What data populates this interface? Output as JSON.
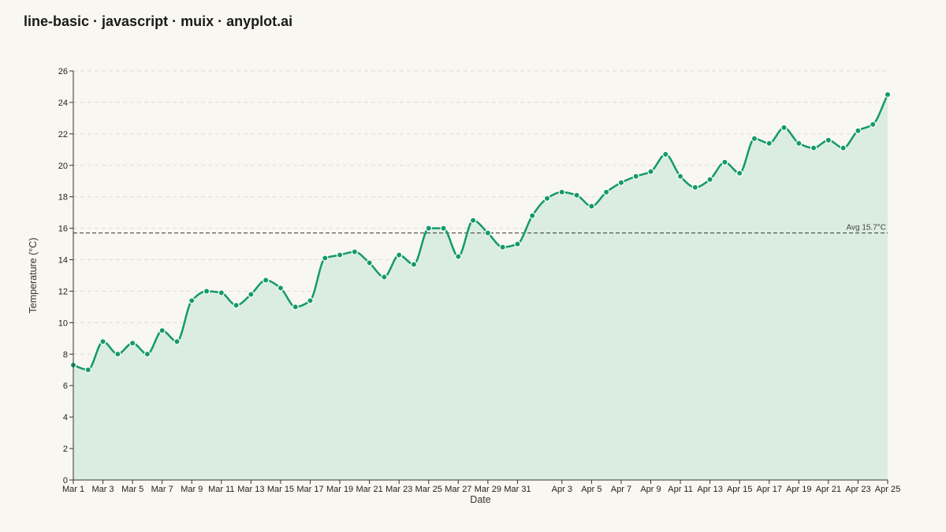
{
  "page": {
    "title": "line-basic · javascript · muix · anyplot.ai"
  },
  "colors": {
    "background": "#f9f7f1",
    "line": "#139a6c",
    "area_fill": "#dbede1",
    "grid": "#dcdcdc",
    "axis": "#333333",
    "reference_line": "#333333"
  },
  "chart_data": {
    "type": "line",
    "xlabel": "Date",
    "ylabel": "Temperature (°C)",
    "ylim": [
      0,
      26
    ],
    "y_ticks": [
      0,
      2,
      4,
      6,
      8,
      10,
      12,
      14,
      16,
      18,
      20,
      22,
      24,
      26
    ],
    "x_start": "2024-03-01",
    "x_end": "2024-04-25",
    "x_tick_labels": [
      {
        "date": "2024-03-01",
        "label": "Mar 1"
      },
      {
        "date": "2024-03-03",
        "label": "Mar 3"
      },
      {
        "date": "2024-03-05",
        "label": "Mar 5"
      },
      {
        "date": "2024-03-07",
        "label": "Mar 7"
      },
      {
        "date": "2024-03-09",
        "label": "Mar 9"
      },
      {
        "date": "2024-03-11",
        "label": "Mar 11"
      },
      {
        "date": "2024-03-13",
        "label": "Mar 13"
      },
      {
        "date": "2024-03-15",
        "label": "Mar 15"
      },
      {
        "date": "2024-03-17",
        "label": "Mar 17"
      },
      {
        "date": "2024-03-19",
        "label": "Mar 19"
      },
      {
        "date": "2024-03-21",
        "label": "Mar 21"
      },
      {
        "date": "2024-03-23",
        "label": "Mar 23"
      },
      {
        "date": "2024-03-25",
        "label": "Mar 25"
      },
      {
        "date": "2024-03-27",
        "label": "Mar 27"
      },
      {
        "date": "2024-03-29",
        "label": "Mar 29"
      },
      {
        "date": "2024-03-31",
        "label": "Mar 31"
      },
      {
        "date": "2024-04-03",
        "label": "Apr 3"
      },
      {
        "date": "2024-04-05",
        "label": "Apr 5"
      },
      {
        "date": "2024-04-07",
        "label": "Apr 7"
      },
      {
        "date": "2024-04-09",
        "label": "Apr 9"
      },
      {
        "date": "2024-04-11",
        "label": "Apr 11"
      },
      {
        "date": "2024-04-13",
        "label": "Apr 13"
      },
      {
        "date": "2024-04-15",
        "label": "Apr 15"
      },
      {
        "date": "2024-04-17",
        "label": "Apr 17"
      },
      {
        "date": "2024-04-19",
        "label": "Apr 19"
      },
      {
        "date": "2024-04-21",
        "label": "Apr 21"
      },
      {
        "date": "2024-04-23",
        "label": "Apr 23"
      },
      {
        "date": "2024-04-25",
        "label": "Apr 25"
      }
    ],
    "grid": "horizontal dashed",
    "area_fill": true,
    "markers": true,
    "reference_line": {
      "value": 15.7,
      "label": "Avg 15.7°C"
    },
    "series": [
      {
        "x": [
          "2024-03-01",
          "2024-03-02",
          "2024-03-03",
          "2024-03-04",
          "2024-03-05",
          "2024-03-06",
          "2024-03-07",
          "2024-03-08",
          "2024-03-09",
          "2024-03-10",
          "2024-03-11",
          "2024-03-12",
          "2024-03-13",
          "2024-03-14",
          "2024-03-15",
          "2024-03-16",
          "2024-03-17",
          "2024-03-18",
          "2024-03-19",
          "2024-03-20",
          "2024-03-21",
          "2024-03-22",
          "2024-03-23",
          "2024-03-24",
          "2024-03-25",
          "2024-03-26",
          "2024-03-27",
          "2024-03-28",
          "2024-03-29",
          "2024-03-30",
          "2024-03-31",
          "2024-04-01",
          "2024-04-02",
          "2024-04-03",
          "2024-04-04",
          "2024-04-05",
          "2024-04-06",
          "2024-04-07",
          "2024-04-08",
          "2024-04-09",
          "2024-04-10",
          "2024-04-11",
          "2024-04-12",
          "2024-04-13",
          "2024-04-14",
          "2024-04-15",
          "2024-04-16",
          "2024-04-17",
          "2024-04-18",
          "2024-04-19",
          "2024-04-20",
          "2024-04-21",
          "2024-04-22",
          "2024-04-23",
          "2024-04-24",
          "2024-04-25"
        ],
        "values": [
          7.3,
          7.0,
          8.8,
          8.0,
          8.7,
          8.0,
          9.5,
          8.8,
          11.4,
          12.0,
          11.9,
          11.1,
          11.8,
          12.7,
          12.2,
          11.0,
          11.4,
          14.1,
          14.3,
          14.5,
          13.8,
          12.9,
          14.3,
          13.7,
          16.0,
          16.0,
          14.2,
          16.5,
          15.7,
          14.8,
          15.0,
          16.8,
          17.9,
          18.3,
          18.1,
          17.4,
          18.3,
          18.9,
          19.3,
          19.6,
          20.7,
          19.3,
          18.6,
          19.1,
          20.2,
          19.5,
          21.7,
          21.4,
          22.4,
          21.4,
          21.1,
          21.6,
          21.1,
          22.2,
          22.6,
          24.5
        ]
      }
    ]
  }
}
